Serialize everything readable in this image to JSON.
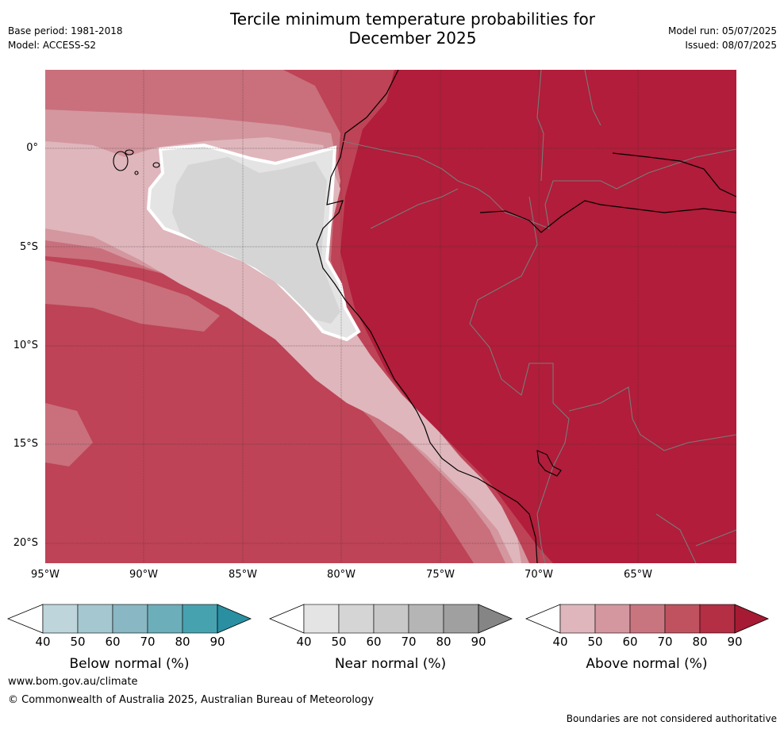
{
  "title_line1": "Tercile minimum temperature probabilities for",
  "title_line2": "December 2025",
  "base_period": "Base period: 1981-2018",
  "model": "Model: ACCESS-S2",
  "model_run": "Model run: 05/07/2025",
  "issued": "Issued: 08/07/2025",
  "lat_labels": [
    "0°",
    "5°S",
    "10°S",
    "15°S",
    "20°S"
  ],
  "lon_labels": [
    "95°W",
    "90°W",
    "85°W",
    "80°W",
    "75°W",
    "70°W",
    "65°W"
  ],
  "colorbars": [
    {
      "title": "Below normal (%)",
      "ticks": [
        "40",
        "50",
        "60",
        "70",
        "80",
        "90"
      ],
      "colors": [
        "#bdd5db",
        "#a5c7cf",
        "#89b7c3",
        "#6caeb9",
        "#47a2b0",
        "#2a8fa1"
      ]
    },
    {
      "title": "Near normal (%)",
      "ticks": [
        "40",
        "50",
        "60",
        "70",
        "80",
        "90"
      ],
      "colors": [
        "#e4e4e4",
        "#d5d5d5",
        "#c8c8c8",
        "#b5b5b5",
        "#a0a0a0",
        "#858585"
      ]
    },
    {
      "title": "Above normal (%)",
      "ticks": [
        "40",
        "50",
        "60",
        "70",
        "80",
        "90"
      ],
      "colors": [
        "#dfb6bc",
        "#d4979f",
        "#c97580",
        "#c0525f",
        "#b42e44",
        "#a61a33"
      ]
    }
  ],
  "footer_url": "www.bom.gov.au/climate",
  "footer_copyright": "© Commonwealth of Australia 2025, Australian Bureau of Meteorology",
  "footer_note": "Boundaries are not considered authoritative"
}
